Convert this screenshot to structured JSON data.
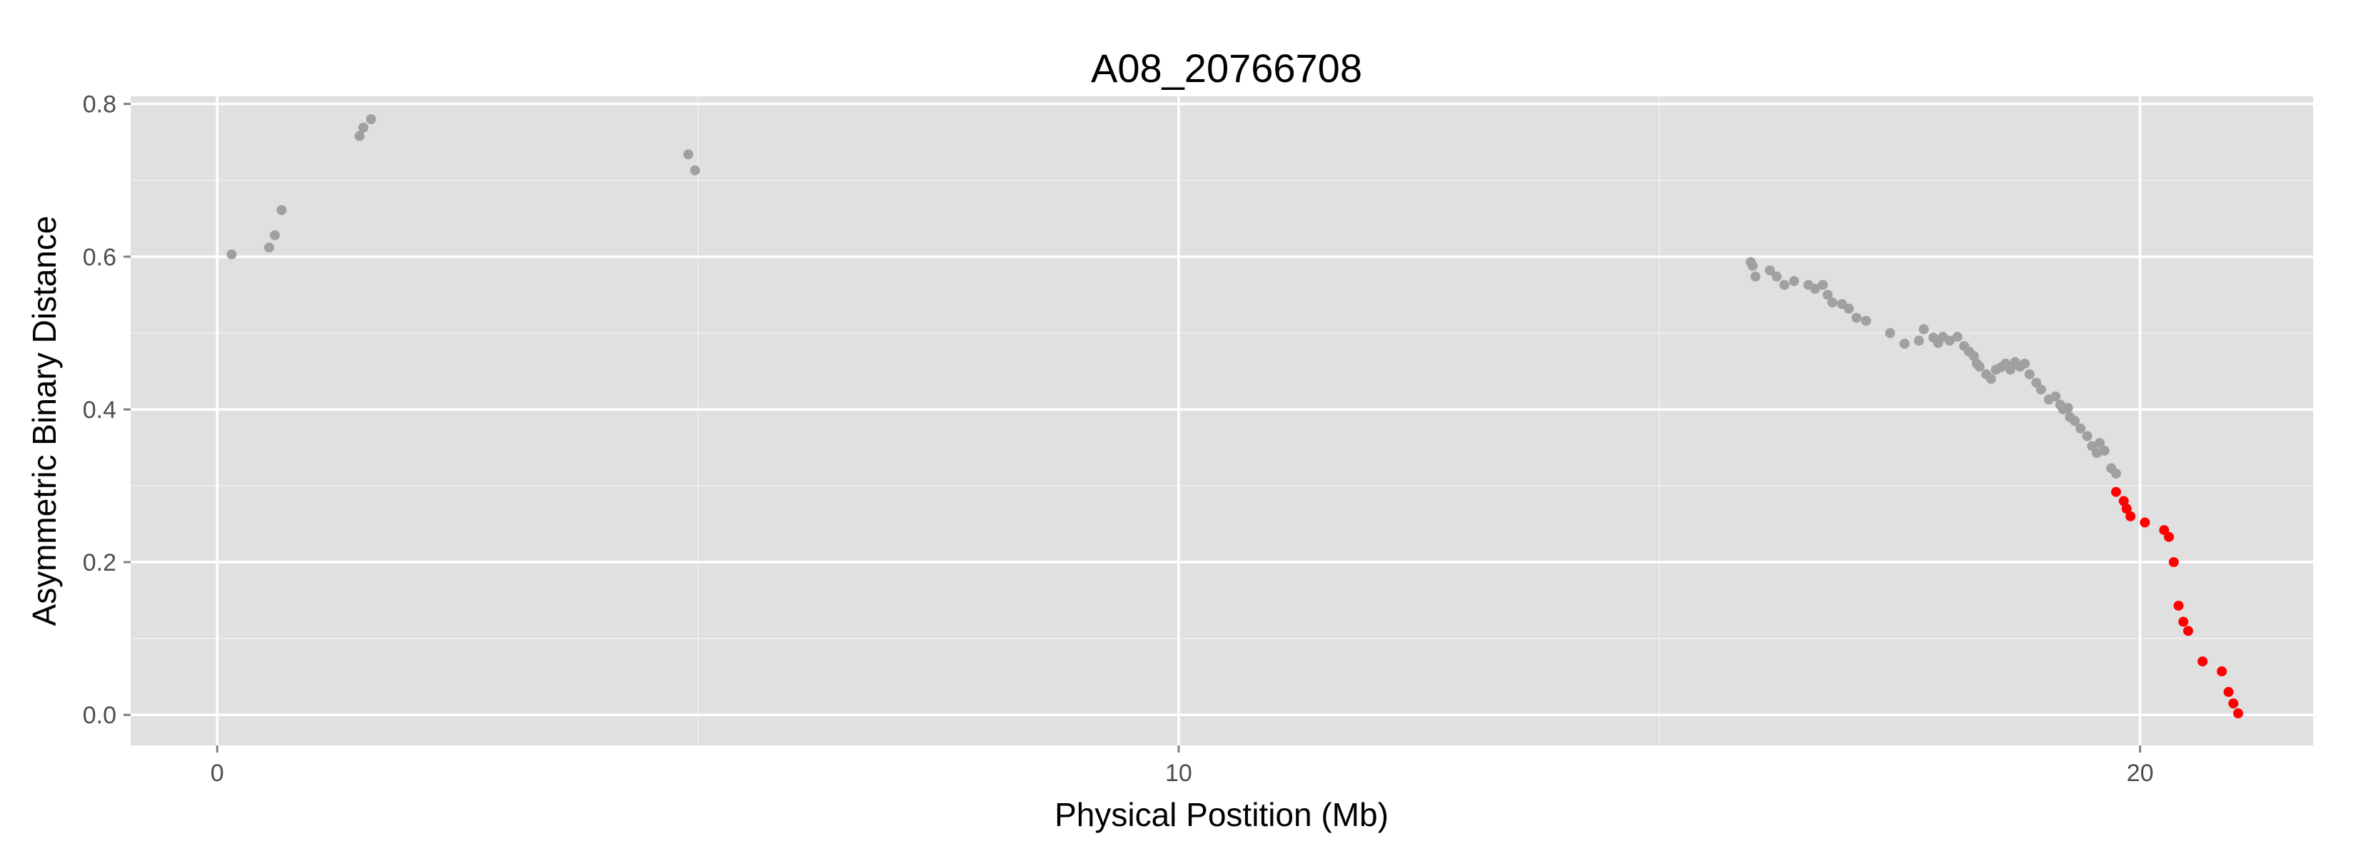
{
  "chart_data": {
    "type": "scatter",
    "title": "A08_20766708",
    "xlabel": "Physical Postition (Mb)",
    "ylabel": "Asymmetric Binary Distance",
    "xlim": [
      -0.9,
      21.8
    ],
    "ylim": [
      -0.04,
      0.81
    ],
    "x_ticks": [
      0,
      10,
      20
    ],
    "x_tick_labels": [
      "0",
      "10",
      "20"
    ],
    "y_ticks": [
      0.0,
      0.2,
      0.4,
      0.6,
      0.8
    ],
    "y_tick_labels": [
      "0.0",
      "0.2",
      "0.4",
      "0.6",
      "0.8"
    ],
    "grid": true,
    "panel_background": "#e0e0e0",
    "grid_color": "#ffffff",
    "series": [
      {
        "color": "#a0a0a0",
        "points": [
          [
            0.15,
            0.603
          ],
          [
            0.54,
            0.612
          ],
          [
            0.6,
            0.628
          ],
          [
            0.67,
            0.661
          ],
          [
            1.48,
            0.758
          ],
          [
            1.52,
            0.769
          ],
          [
            1.6,
            0.78
          ],
          [
            4.9,
            0.734
          ],
          [
            4.97,
            0.713
          ],
          [
            15.95,
            0.593
          ],
          [
            15.97,
            0.588
          ],
          [
            16.0,
            0.574
          ],
          [
            16.15,
            0.582
          ],
          [
            16.22,
            0.574
          ],
          [
            16.3,
            0.563
          ],
          [
            16.4,
            0.568
          ],
          [
            16.55,
            0.563
          ],
          [
            16.62,
            0.558
          ],
          [
            16.7,
            0.563
          ],
          [
            16.75,
            0.55
          ],
          [
            16.8,
            0.54
          ],
          [
            16.9,
            0.538
          ],
          [
            16.97,
            0.532
          ],
          [
            17.05,
            0.52
          ],
          [
            17.15,
            0.516
          ],
          [
            17.4,
            0.5
          ],
          [
            17.55,
            0.486
          ],
          [
            17.7,
            0.49
          ],
          [
            17.75,
            0.505
          ],
          [
            17.85,
            0.494
          ],
          [
            17.9,
            0.487
          ],
          [
            17.95,
            0.495
          ],
          [
            18.02,
            0.49
          ],
          [
            18.1,
            0.495
          ],
          [
            18.17,
            0.483
          ],
          [
            18.22,
            0.476
          ],
          [
            18.27,
            0.47
          ],
          [
            18.3,
            0.46
          ],
          [
            18.33,
            0.456
          ],
          [
            18.4,
            0.446
          ],
          [
            18.45,
            0.44
          ],
          [
            18.5,
            0.452
          ],
          [
            18.55,
            0.455
          ],
          [
            18.6,
            0.46
          ],
          [
            18.65,
            0.452
          ],
          [
            18.7,
            0.462
          ],
          [
            18.75,
            0.456
          ],
          [
            18.8,
            0.46
          ],
          [
            18.85,
            0.446
          ],
          [
            18.92,
            0.435
          ],
          [
            18.97,
            0.426
          ],
          [
            19.05,
            0.413
          ],
          [
            19.12,
            0.417
          ],
          [
            19.17,
            0.406
          ],
          [
            19.2,
            0.4
          ],
          [
            19.25,
            0.402
          ],
          [
            19.27,
            0.39
          ],
          [
            19.32,
            0.385
          ],
          [
            19.38,
            0.375
          ],
          [
            19.45,
            0.365
          ],
          [
            19.5,
            0.352
          ],
          [
            19.55,
            0.343
          ],
          [
            19.58,
            0.356
          ],
          [
            19.63,
            0.346
          ],
          [
            19.7,
            0.323
          ],
          [
            19.75,
            0.316
          ]
        ]
      },
      {
        "color": "#ff0000",
        "points": [
          [
            19.75,
            0.292
          ],
          [
            19.83,
            0.28
          ],
          [
            19.86,
            0.27
          ],
          [
            19.9,
            0.26
          ],
          [
            20.05,
            0.252
          ],
          [
            20.25,
            0.242
          ],
          [
            20.3,
            0.233
          ],
          [
            20.35,
            0.2
          ],
          [
            20.4,
            0.143
          ],
          [
            20.45,
            0.122
          ],
          [
            20.5,
            0.11
          ],
          [
            20.65,
            0.07
          ],
          [
            20.85,
            0.057
          ],
          [
            20.92,
            0.03
          ],
          [
            20.97,
            0.015
          ],
          [
            21.02,
            0.002
          ]
        ]
      }
    ]
  }
}
